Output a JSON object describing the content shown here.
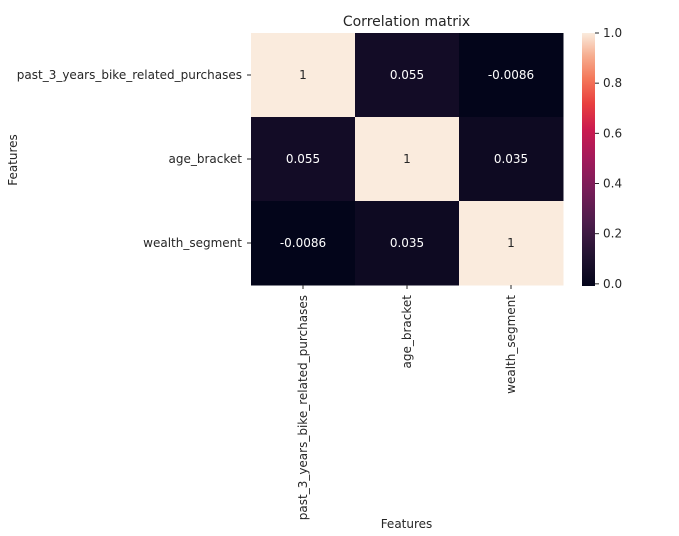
{
  "chart_data": {
    "type": "heatmap",
    "title": "Correlation matrix",
    "xlabel": "Features",
    "ylabel": "Features",
    "rows": [
      "past_3_years_bike_related_purchases",
      "age_bracket",
      "wealth_segment"
    ],
    "columns": [
      "past_3_years_bike_related_purchases",
      "age_bracket",
      "wealth_segment"
    ],
    "values": [
      [
        1,
        0.055,
        -0.0086
      ],
      [
        0.055,
        1,
        0.035
      ],
      [
        -0.0086,
        0.035,
        1
      ]
    ],
    "annotations": [
      [
        "1",
        "0.055",
        "-0.0086"
      ],
      [
        "0.055",
        "1",
        "0.035"
      ],
      [
        "-0.0086",
        "0.035",
        "1"
      ]
    ],
    "colorbar": {
      "range": [
        -0.0086,
        1.0
      ],
      "ticks": [
        "0.0",
        "0.2",
        "0.4",
        "0.6",
        "0.8",
        "1.0"
      ],
      "tick_values": [
        0.0,
        0.2,
        0.4,
        0.6,
        0.8,
        1.0
      ],
      "colormap": "rocket"
    }
  }
}
